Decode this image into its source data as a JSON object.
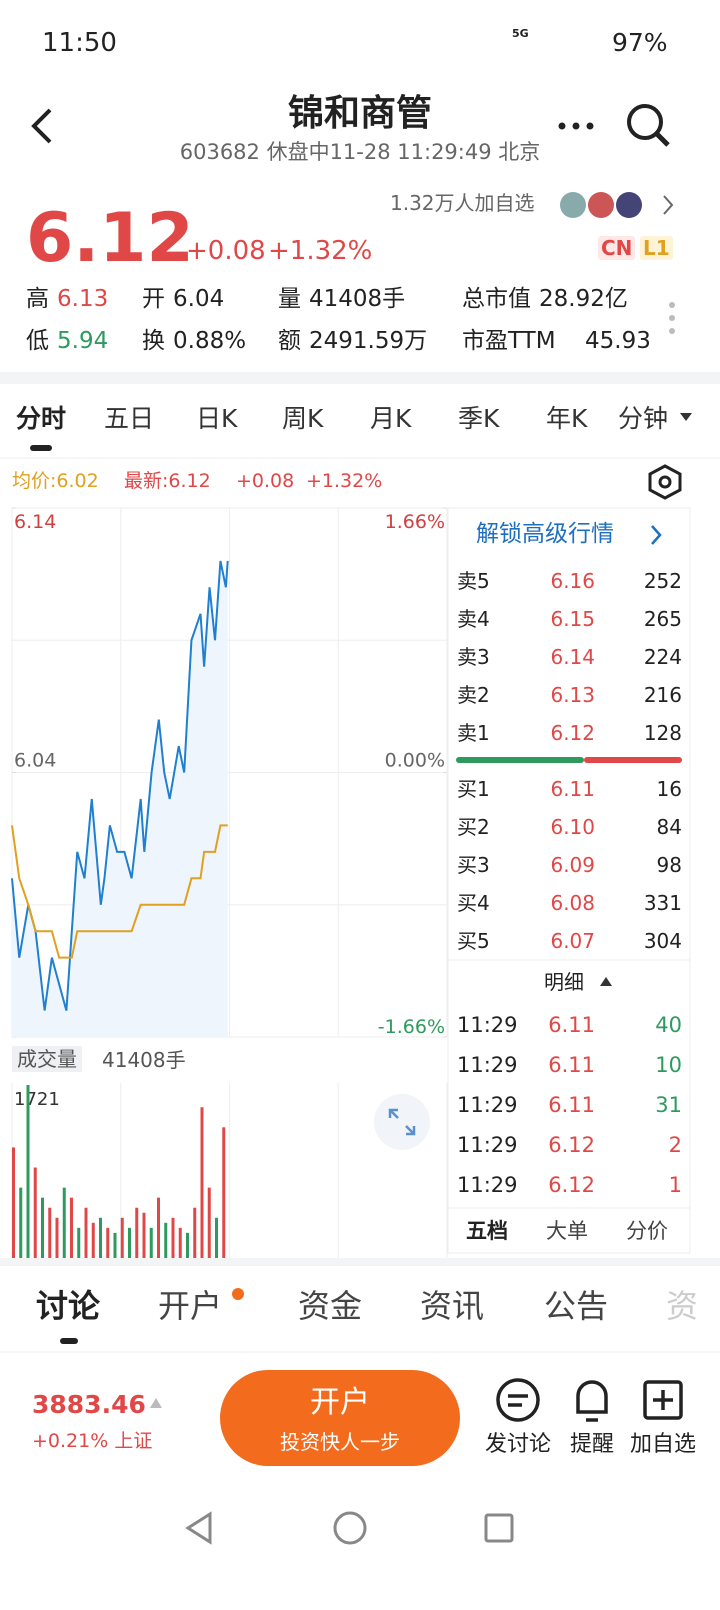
{
  "status": {
    "time": "11:50",
    "network": "5G",
    "battery": "97%"
  },
  "header": {
    "title": "锦和商管",
    "subtitle": "603682 休盘中11-28 11:29:49 北京"
  },
  "quote": {
    "price": "6.12",
    "change": "+0.08",
    "change_pct": "+1.32%",
    "watchers": "1.32万人加自选",
    "badges": [
      "CN",
      "L1"
    ]
  },
  "stats": [
    {
      "label": "高",
      "value": "6.13"
    },
    {
      "label": "开",
      "value": "6.04"
    },
    {
      "label": "量",
      "value": "41408手"
    },
    {
      "label": "总市值",
      "value": "28.92亿"
    },
    {
      "label": "低",
      "value": "5.94"
    },
    {
      "label": "换",
      "value": "0.88%"
    },
    {
      "label": "额",
      "value": "2491.59万"
    },
    {
      "label": "市盈TTM",
      "value": "45.93"
    }
  ],
  "chart_tabs": [
    "分时",
    "五日",
    "日K",
    "周K",
    "月K",
    "季K",
    "年K",
    "分钟"
  ],
  "legend": {
    "avg": "均价:6.02",
    "last": "最新:6.12",
    "change": "+0.08",
    "change_pct": "+1.32%"
  },
  "chart_data": [
    {
      "type": "line",
      "x": [
        0,
        4,
        9,
        13,
        18,
        22,
        26,
        30,
        33,
        36,
        40,
        44,
        49,
        51,
        54,
        58,
        62,
        66,
        71,
        73,
        77,
        81,
        84,
        87,
        92,
        95,
        99,
        104,
        106,
        109,
        112,
        115,
        118,
        119
      ],
      "xlim": [
        0,
        240
      ],
      "ylim": [
        5.94,
        6.14
      ],
      "yticks": [
        6.14,
        6.04,
        5.94
      ],
      "y2lim": [
        -1.66,
        1.66
      ],
      "y2ticks": [
        {
          "value": 1.66,
          "label": "1.66%"
        },
        {
          "value": 0,
          "label": "0.00%"
        },
        {
          "value": -1.66,
          "label": "-1.66%"
        }
      ],
      "series": [
        {
          "color": "#1f7fd0",
          "values": [
            6.0,
            5.97,
            5.99,
            5.98,
            5.95,
            5.97,
            5.96,
            5.95,
            5.98,
            6.01,
            6.0,
            6.03,
            5.99,
            6.0,
            6.02,
            6.01,
            6.01,
            6.0,
            6.03,
            6.01,
            6.04,
            6.06,
            6.04,
            6.03,
            6.05,
            6.04,
            6.09,
            6.1,
            6.08,
            6.11,
            6.09,
            6.12,
            6.11,
            6.12
          ]
        },
        {
          "color": "#e0a020",
          "values": [
            6.02,
            6.0,
            5.99,
            5.98,
            5.98,
            5.98,
            5.97,
            5.97,
            5.97,
            5.98,
            5.98,
            5.98,
            5.98,
            5.98,
            5.98,
            5.98,
            5.98,
            5.98,
            5.99,
            5.99,
            5.99,
            5.99,
            5.99,
            5.99,
            5.99,
            5.99,
            6.0,
            6.0,
            6.01,
            6.01,
            6.01,
            6.02,
            6.02,
            6.02
          ]
        }
      ]
    },
    {
      "type": "bar",
      "x": [
        0,
        4,
        8,
        12,
        16,
        20,
        24,
        28,
        32,
        36,
        40,
        44,
        48,
        52,
        56,
        60,
        64,
        68,
        72,
        76,
        80,
        84,
        88,
        92,
        96,
        100,
        104,
        108,
        112,
        116
      ],
      "xlim": [
        0,
        240
      ],
      "ylim": [
        0,
        1721
      ],
      "yticks": [
        1721
      ],
      "values": [
        1100,
        700,
        1721,
        900,
        600,
        500,
        400,
        700,
        600,
        300,
        500,
        350,
        400,
        300,
        250,
        400,
        300,
        500,
        450,
        300,
        600,
        350,
        400,
        300,
        250,
        500,
        1500,
        700,
        400,
        1300
      ],
      "colors": [
        "#e04848",
        "#2e9a5e",
        "#2e9a5e",
        "#e04848",
        "#2e9a5e",
        "#e04848",
        "#e04848",
        "#2e9a5e",
        "#e04848",
        "#2e9a5e",
        "#e04848",
        "#e04848",
        "#2e9a5e",
        "#e04848",
        "#2e9a5e",
        "#e04848",
        "#2e9a5e",
        "#e04848",
        "#e04848",
        "#2e9a5e",
        "#e04848",
        "#2e9a5e",
        "#e04848",
        "#e04848",
        "#2e9a5e",
        "#e04848",
        "#e04848",
        "#e04848",
        "#2e9a5e",
        "#e04848"
      ]
    }
  ],
  "volume_label": {
    "title": "成交量",
    "value": "41408手"
  },
  "order_book": {
    "link": "解锁高级行情",
    "sell": [
      {
        "label": "卖5",
        "price": "6.16",
        "volume": "252"
      },
      {
        "label": "卖4",
        "price": "6.15",
        "volume": "265"
      },
      {
        "label": "卖3",
        "price": "6.14",
        "volume": "224"
      },
      {
        "label": "卖2",
        "price": "6.13",
        "volume": "216"
      },
      {
        "label": "卖1",
        "price": "6.12",
        "volume": "128"
      }
    ],
    "buy": [
      {
        "label": "买1",
        "price": "6.11",
        "volume": "16"
      },
      {
        "label": "买2",
        "price": "6.10",
        "volume": "84"
      },
      {
        "label": "买3",
        "price": "6.09",
        "volume": "98"
      },
      {
        "label": "买4",
        "price": "6.08",
        "volume": "331"
      },
      {
        "label": "买5",
        "price": "6.07",
        "volume": "304"
      }
    ]
  },
  "details": {
    "title": "明细",
    "rows": [
      {
        "time": "11:29",
        "price": "6.11",
        "volume": "40"
      },
      {
        "time": "11:29",
        "price": "6.11",
        "volume": "10"
      },
      {
        "time": "11:29",
        "price": "6.11",
        "volume": "31"
      },
      {
        "time": "11:29",
        "price": "6.12",
        "volume": "2"
      },
      {
        "time": "11:29",
        "price": "6.12",
        "volume": "1"
      }
    ]
  },
  "panel_tabs": [
    "五档",
    "大单",
    "分价"
  ],
  "bottom_tabs": [
    "讨论",
    "开户",
    "资金",
    "资讯",
    "公告",
    "资"
  ],
  "footer": {
    "index_value": "3883.46",
    "index_change": "+0.21% 上证",
    "button_title": "开户",
    "button_sub": "投资快人一步",
    "actions": [
      "发讨论",
      "提醒",
      "加自选"
    ]
  }
}
